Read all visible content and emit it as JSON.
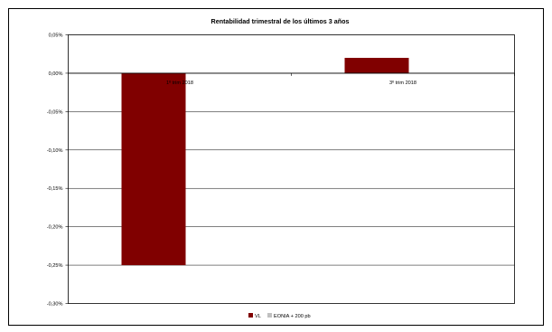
{
  "chart_data": {
    "type": "bar",
    "title": "Rentabilidad trimestral de los últimos 3 años",
    "xlabel": "",
    "ylabel": "",
    "categories": [
      "1º trim 2018",
      "3º trim 2018"
    ],
    "series": [
      {
        "name": "VL",
        "values": [
          -0.25,
          0.02
        ],
        "color": "#800000"
      },
      {
        "name": "EONIA + 200 pb",
        "values": [
          null,
          null
        ],
        "color": "#c0c0c0"
      }
    ],
    "ylim": [
      -0.3,
      0.05
    ],
    "yticks": [
      "0,05%",
      "0,00%",
      "-0,05%",
      "-0,10%",
      "-0,15%",
      "-0,20%",
      "-0,25%",
      "-0,30%"
    ],
    "ytick_values": [
      0.05,
      0.0,
      -0.05,
      -0.1,
      -0.15,
      -0.2,
      -0.25,
      -0.3
    ],
    "grid": true,
    "legend_position": "bottom"
  }
}
